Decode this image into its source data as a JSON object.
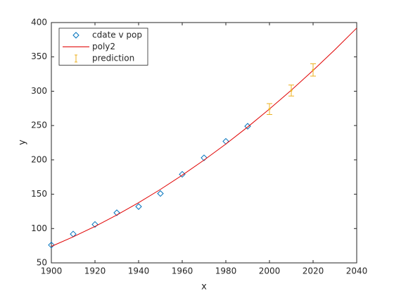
{
  "chart_data": {
    "type": "line",
    "xlabel": "x",
    "ylabel": "y",
    "xlim": [
      1900,
      2040
    ],
    "xticks": [
      1900,
      1920,
      1940,
      1960,
      1980,
      2000,
      2020,
      2040
    ],
    "ylim": [
      50,
      400
    ],
    "yticks": [
      50,
      100,
      150,
      200,
      250,
      300,
      350,
      400
    ],
    "legend": "upper-left",
    "grid": false,
    "series": [
      {
        "name": "cdate v pop",
        "kind": "marker",
        "color": "#0072bd",
        "x": [
          1900,
          1910,
          1920,
          1930,
          1940,
          1950,
          1960,
          1970,
          1980,
          1990
        ],
        "values": [
          76,
          92,
          106,
          123,
          132,
          151,
          179,
          203,
          227,
          249
        ]
      },
      {
        "name": "poly2",
        "kind": "line",
        "color": "#e00000",
        "x": [
          1900,
          1910,
          1920,
          1930,
          1940,
          1950,
          1960,
          1970,
          1980,
          1990,
          2000,
          2010,
          2020,
          2030,
          2040
        ],
        "values": [
          74,
          87.9,
          103.1,
          119.7,
          137.7,
          157,
          177.7,
          199.7,
          223.1,
          247.9,
          274.1,
          301.5,
          330.3,
          360.5,
          392
        ]
      },
      {
        "name": "prediction",
        "kind": "errorbar",
        "color": "#edb120",
        "x": [
          2000,
          2010,
          2020
        ],
        "values": [
          274,
          301,
          331
        ],
        "errors": [
          8,
          8,
          9
        ]
      }
    ]
  }
}
